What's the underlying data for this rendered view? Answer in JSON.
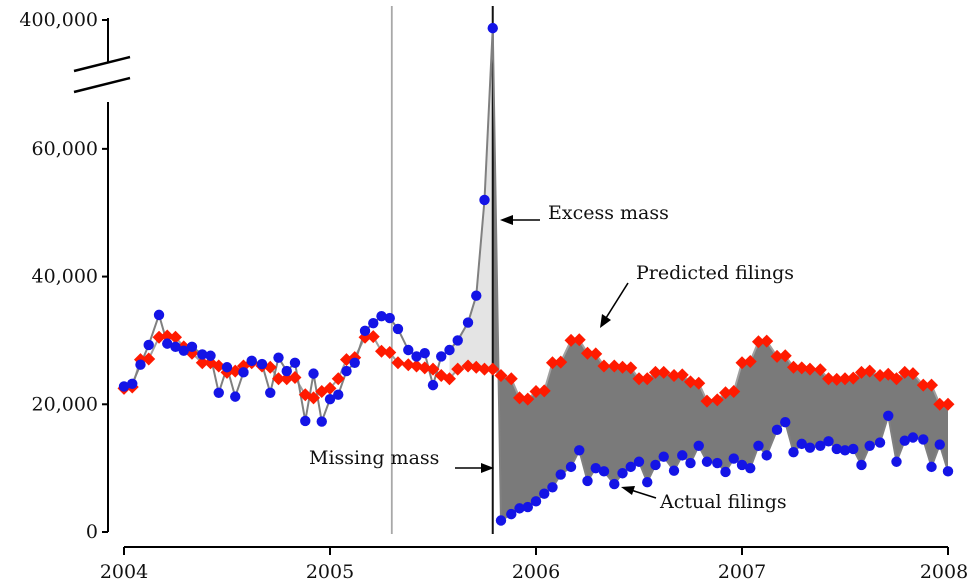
{
  "chart_data": {
    "type": "scatter",
    "title": "",
    "xlabel": "",
    "ylabel": "",
    "xlim": [
      2004,
      2008
    ],
    "ylim": [
      0,
      400000
    ],
    "y_axis_break": [
      70000,
      390000
    ],
    "x_ticks": [
      "2004",
      "2005",
      "2006",
      "2007",
      "2008"
    ],
    "y_ticks": [
      "0",
      "20,000",
      "40,000",
      "60,000",
      "400,000"
    ],
    "vertical_lines": [
      {
        "x": 2005.3,
        "color": "#a8a8a8"
      },
      {
        "x": 2005.79,
        "color": "#111111"
      }
    ],
    "annotations": [
      {
        "text": "Excess mass"
      },
      {
        "text": "Predicted filings"
      },
      {
        "text": "Missing mass"
      },
      {
        "text": "Actual filings"
      }
    ],
    "series": [
      {
        "marker": "diamond",
        "color": "#ff1a00",
        "x": [
          2004.0,
          2004.04,
          2004.08,
          2004.12,
          2004.17,
          2004.21,
          2004.25,
          2004.29,
          2004.33,
          2004.38,
          2004.42,
          2004.46,
          2004.5,
          2004.54,
          2004.58,
          2004.62,
          2004.67,
          2004.71,
          2004.75,
          2004.79,
          2004.83,
          2004.88,
          2004.92,
          2004.96,
          2005.0,
          2005.04,
          2005.08,
          2005.12,
          2005.17,
          2005.21,
          2005.25,
          2005.29,
          2005.33,
          2005.38,
          2005.42,
          2005.46,
          2005.5,
          2005.54,
          2005.58,
          2005.62,
          2005.67,
          2005.71,
          2005.75,
          2005.79,
          2005.83,
          2005.88,
          2005.92,
          2005.96,
          2006.0,
          2006.04,
          2006.08,
          2006.12,
          2006.17,
          2006.21,
          2006.25,
          2006.29,
          2006.33,
          2006.38,
          2006.42,
          2006.46,
          2006.5,
          2006.54,
          2006.58,
          2006.62,
          2006.67,
          2006.71,
          2006.75,
          2006.79,
          2006.83,
          2006.88,
          2006.92,
          2006.96,
          2007.0,
          2007.04,
          2007.08,
          2007.12,
          2007.17,
          2007.21,
          2007.25,
          2007.29,
          2007.33,
          2007.38,
          2007.42,
          2007.46,
          2007.5,
          2007.54,
          2007.58,
          2007.62,
          2007.67,
          2007.71,
          2007.75,
          2007.79,
          2007.83,
          2007.88,
          2007.92,
          2007.96,
          2008.0
        ],
        "values": [
          22500,
          22700,
          27000,
          27100,
          30500,
          30700,
          30500,
          29000,
          28000,
          26500,
          26500,
          26000,
          25000,
          25200,
          26000,
          26500,
          26000,
          25800,
          24000,
          24000,
          24200,
          21500,
          21000,
          22000,
          22500,
          24000,
          27000,
          27300,
          30500,
          30600,
          28300,
          28100,
          26500,
          26200,
          26000,
          25700,
          25500,
          24500,
          24000,
          25500,
          26000,
          25800,
          25500,
          25500,
          24500,
          24000,
          21000,
          20800,
          22000,
          22100,
          26500,
          26600,
          30000,
          30100,
          28000,
          27900,
          26000,
          26000,
          25800,
          25700,
          24000,
          24000,
          25000,
          25000,
          24500,
          24600,
          23500,
          23300,
          20500,
          20700,
          21800,
          22000,
          26500,
          26700,
          29800,
          29900,
          27500,
          27600,
          25800,
          25700,
          25500,
          25400,
          24000,
          23900,
          24000,
          24100,
          25000,
          25200,
          24500,
          24700,
          24000,
          25000,
          24800,
          23000,
          23000,
          20000,
          20000
        ]
      },
      {
        "marker": "circle",
        "color": "#1414e6",
        "x": [
          2004.0,
          2004.04,
          2004.08,
          2004.12,
          2004.17,
          2004.21,
          2004.25,
          2004.29,
          2004.33,
          2004.38,
          2004.42,
          2004.46,
          2004.5,
          2004.54,
          2004.58,
          2004.62,
          2004.67,
          2004.71,
          2004.75,
          2004.79,
          2004.83,
          2004.88,
          2004.92,
          2004.96,
          2005.0,
          2005.04,
          2005.08,
          2005.12,
          2005.17,
          2005.21,
          2005.25,
          2005.29,
          2005.33,
          2005.38,
          2005.42,
          2005.46,
          2005.5,
          2005.54,
          2005.58,
          2005.62,
          2005.67,
          2005.71,
          2005.75,
          2005.79,
          2005.83,
          2005.88,
          2005.92,
          2005.96,
          2006.0,
          2006.04,
          2006.08,
          2006.12,
          2006.17,
          2006.21,
          2006.25,
          2006.29,
          2006.33,
          2006.38,
          2006.42,
          2006.46,
          2006.5,
          2006.54,
          2006.58,
          2006.62,
          2006.67,
          2006.71,
          2006.75,
          2006.79,
          2006.83,
          2006.88,
          2006.92,
          2006.96,
          2007.0,
          2007.04,
          2007.08,
          2007.12,
          2007.17,
          2007.21,
          2007.25,
          2007.29,
          2007.33,
          2007.38,
          2007.42,
          2007.46,
          2007.5,
          2007.54,
          2007.58,
          2007.62,
          2007.67,
          2007.71,
          2007.75,
          2007.79,
          2007.83,
          2007.88,
          2007.92,
          2007.96,
          2008.0
        ],
        "values": [
          22800,
          23200,
          26200,
          29300,
          34000,
          29500,
          29000,
          28400,
          29000,
          27800,
          27600,
          21800,
          25800,
          21200,
          25000,
          26800,
          26300,
          21800,
          27300,
          25200,
          26500,
          17400,
          24800,
          17300,
          20800,
          21500,
          25200,
          26500,
          31500,
          32700,
          33800,
          33500,
          31800,
          28500,
          27500,
          28000,
          23000,
          27500,
          28500,
          30000,
          32800,
          37000,
          52000,
          350000,
          1800,
          2800,
          3700,
          3900,
          4800,
          6000,
          7000,
          9000,
          10200,
          12800,
          8000,
          10000,
          9500,
          7500,
          9200,
          10200,
          11000,
          7800,
          10500,
          11800,
          9600,
          12000,
          10800,
          13500,
          11000,
          10800,
          9400,
          11500,
          10500,
          10000,
          13500,
          12000,
          16000,
          17200,
          12500,
          13800,
          13200,
          13500,
          14200,
          13000,
          12800,
          13000,
          10500,
          13500,
          14000,
          18200,
          11000,
          14300,
          14800,
          14500,
          10200,
          13700,
          9500
        ]
      }
    ]
  }
}
